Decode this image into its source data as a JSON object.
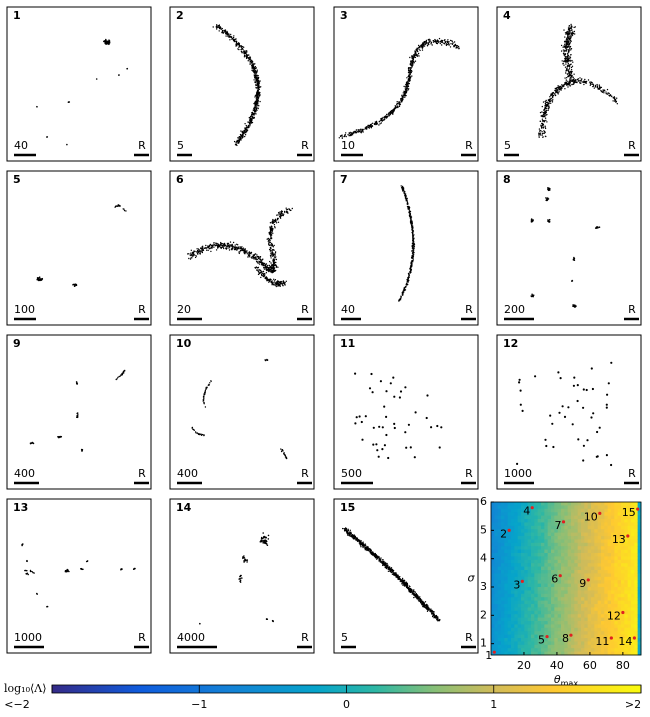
{
  "panels": [
    {
      "number": 1,
      "scale": 40,
      "right_label": "R"
    },
    {
      "number": 2,
      "scale": 5,
      "right_label": "R"
    },
    {
      "number": 3,
      "scale": 10,
      "right_label": "R"
    },
    {
      "number": 4,
      "scale": 5,
      "right_label": "R"
    },
    {
      "number": 5,
      "scale": 100,
      "right_label": "R"
    },
    {
      "number": 6,
      "scale": 20,
      "right_label": "R"
    },
    {
      "number": 7,
      "scale": 40,
      "right_label": "R"
    },
    {
      "number": 8,
      "scale": 200,
      "right_label": "R"
    },
    {
      "number": 9,
      "scale": 400,
      "right_label": "R"
    },
    {
      "number": 10,
      "scale": 400,
      "right_label": "R"
    },
    {
      "number": 11,
      "scale": 500,
      "right_label": "R"
    },
    {
      "number": 12,
      "scale": 1000,
      "right_label": "R"
    },
    {
      "number": 13,
      "scale": 1000,
      "right_label": "R"
    },
    {
      "number": 14,
      "scale": 4000,
      "right_label": "R"
    },
    {
      "number": 15,
      "scale": 5,
      "right_label": "R"
    }
  ],
  "chart_data": {
    "type": "scatter",
    "x_label_symbol": "θ",
    "x_label_subscript": "max",
    "y_label": "σ",
    "x": [
      2,
      11,
      19,
      25,
      34,
      42,
      44,
      48.5,
      59,
      66,
      73,
      80,
      83,
      87,
      89
    ],
    "values": [
      0.7,
      5,
      3.2,
      5.8,
      1.25,
      3.4,
      5.3,
      1.3,
      3.25,
      5.6,
      1.2,
      2.1,
      4.8,
      1.2,
      5.75
    ],
    "labels": [
      1,
      2,
      3,
      4,
      5,
      6,
      7,
      8,
      9,
      10,
      11,
      12,
      13,
      14,
      15
    ],
    "color": "#e02020",
    "xlim": [
      0,
      91
    ],
    "ylim": [
      0.6,
      6
    ],
    "xticks": [
      20,
      40,
      60,
      80
    ],
    "yticks": [
      1,
      2,
      3,
      4,
      5,
      6
    ],
    "colorbar": {
      "label": "log₁₀⟨Λ⟩",
      "clim": [
        -2,
        2
      ],
      "ticks": [
        {
          "value": -2,
          "label": "<−2"
        },
        {
          "value": -1,
          "label": "−1"
        },
        0,
        1,
        {
          "value": 2,
          "label": ">2"
        }
      ]
    }
  }
}
